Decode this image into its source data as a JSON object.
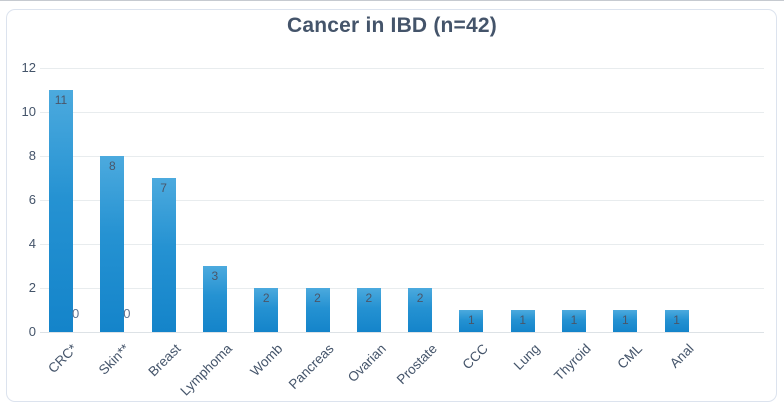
{
  "chart_data": {
    "type": "bar",
    "title": "Cancer in IBD (n=42)",
    "categories": [
      "CRC*",
      "Skin**",
      "Breast",
      "Lymphoma",
      "Womb",
      "Pancreas",
      "Ovarian",
      "Prostate",
      "CCC",
      "Lung",
      "Thyroid",
      "CML",
      "Anal"
    ],
    "values": [
      11,
      8,
      7,
      3,
      2,
      2,
      2,
      2,
      1,
      1,
      1,
      1,
      1
    ],
    "bar_labels": [
      "11",
      "8",
      "7",
      "3",
      "2",
      "2",
      "2",
      "2",
      "1",
      "1",
      "1",
      "1",
      "1"
    ],
    "zero_labels": [
      {
        "category_index": 0,
        "text": "0"
      },
      {
        "category_index": 1,
        "text": "0"
      }
    ],
    "xlabel": "",
    "ylabel": "",
    "ylim": [
      0,
      12
    ],
    "yticks": [
      0,
      2,
      4,
      6,
      8,
      10,
      12
    ],
    "grid": true,
    "legend": false,
    "colors": {
      "bar_top": "#4caade",
      "bar_mid": "#2592d2",
      "bar_bottom": "#1484ca",
      "title_text": "#44546a",
      "axis_text": "#44546a",
      "data_label": "#4a5568",
      "zero_label": "#5f7390",
      "gridline": "#e8ecee",
      "baseline": "#dde2e6",
      "frame_border": "#dce3ee"
    }
  }
}
